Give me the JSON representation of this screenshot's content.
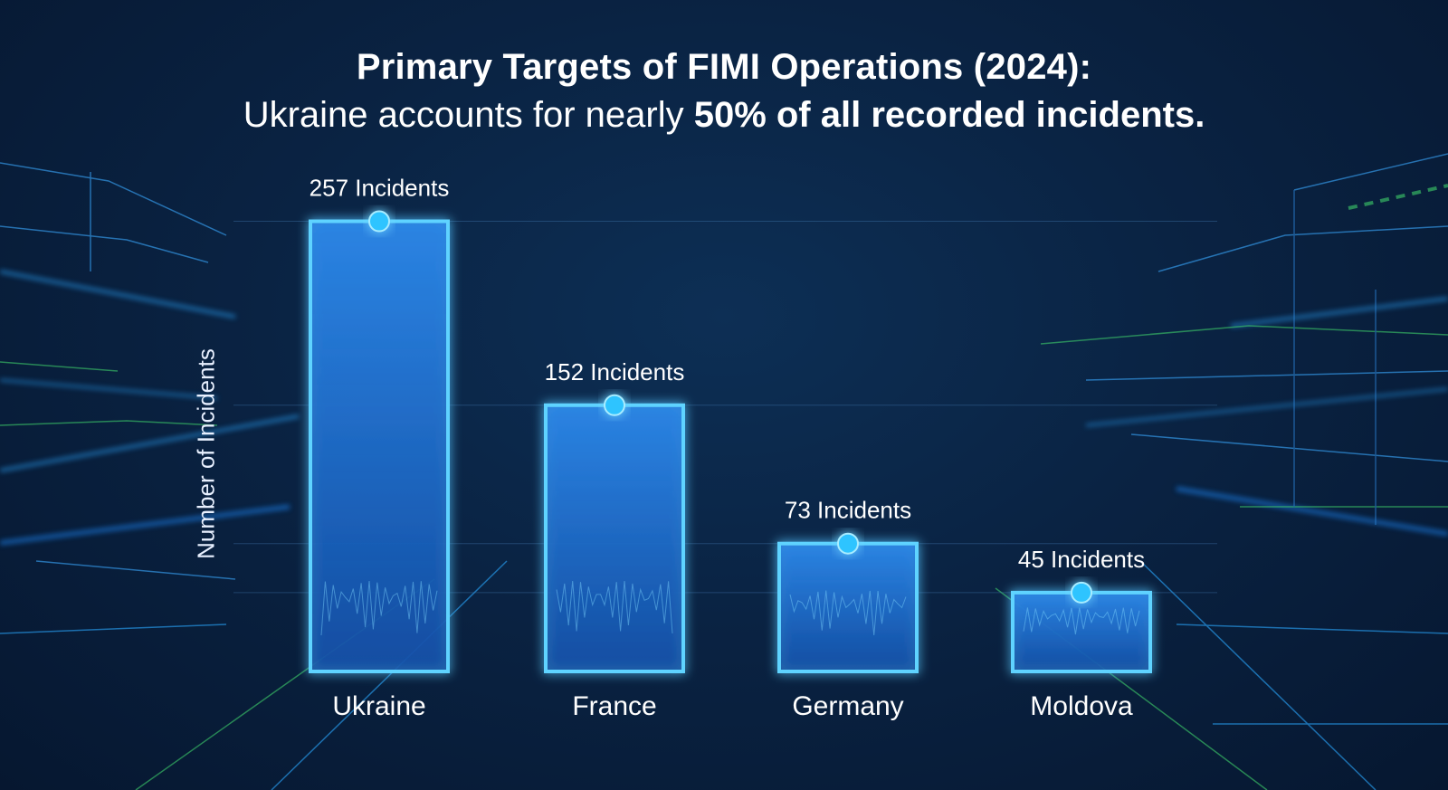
{
  "header": {
    "title": "Primary Targets of FIMI Operations (2024):",
    "subtitle_prefix": "Ukraine accounts for nearly ",
    "subtitle_highlight": "50% of all recorded incidents."
  },
  "colors": {
    "background": "#0a2343",
    "bar_edge": "#5fd3ff",
    "bar_fill": "#1f6fcf",
    "accent_green": "#3ecf6a"
  },
  "chart_data": {
    "type": "bar",
    "title": "Primary Targets of FIMI Operations (2024): Ukraine accounts for nearly 50% of all recorded incidents.",
    "xlabel": "",
    "ylabel": "Number of Incidents",
    "categories": [
      "Ukraine",
      "France",
      "Germany",
      "Moldova"
    ],
    "values": [
      257,
      152,
      73,
      45
    ],
    "data_labels": [
      "257 Incidents",
      "152 Incidents",
      "73 Incidents",
      "45 Incidents"
    ],
    "ylim": [
      0,
      280
    ],
    "grid": true,
    "legend": "none"
  }
}
